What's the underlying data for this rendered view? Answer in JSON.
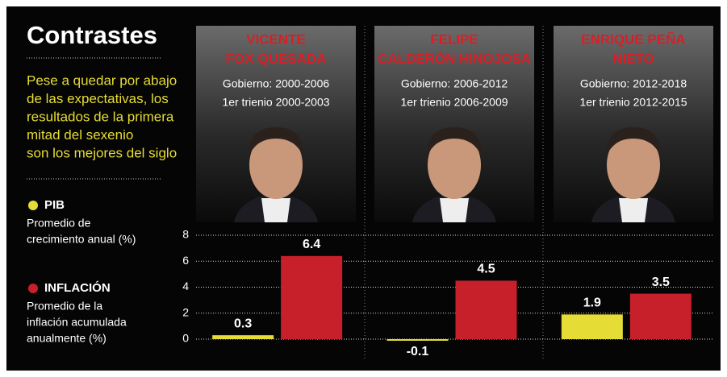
{
  "header": {
    "title": "Contrastes",
    "intro": [
      "Pese a quedar por abajo",
      "de las expectativas, los",
      "resultados de la primera",
      "mitad del sexenio",
      "son los mejores del siglo"
    ]
  },
  "panels": [
    {
      "name": [
        "VICENTE",
        "FOX QUESADA"
      ],
      "gobierno": "Gobierno: 2000-2006",
      "trienio": "1er trienio 2000-2003"
    },
    {
      "name": [
        "FELIPE",
        "CALDERÓN HINOJOSA"
      ],
      "gobierno": "Gobierno: 2006-2012",
      "trienio": "1er trienio 2006-2009"
    },
    {
      "name": [
        "ENRIQUE PEÑA",
        "NIETO"
      ],
      "gobierno": "Gobierno: 2012-2018",
      "trienio": "1er trienio 2012-2015"
    }
  ],
  "chart_data": {
    "type": "bar",
    "categories": [
      null,
      null,
      null
    ],
    "series": [
      {
        "name": "PIB",
        "color": "#e6dc36",
        "description": [
          "Promedio de",
          "crecimiento anual (%)"
        ],
        "values": [
          0.3,
          -0.1,
          1.9
        ]
      },
      {
        "name": "INFLACIÓN",
        "color": "#c8202a",
        "description": [
          "Promedio de la",
          "inflación acumulada",
          "anualmente (%)"
        ],
        "values": [
          6.4,
          4.5,
          3.5
        ]
      }
    ],
    "ylim": [
      -1.2,
      8
    ],
    "yticks": [
      0,
      2,
      4,
      6,
      8
    ],
    "grid": true
  }
}
